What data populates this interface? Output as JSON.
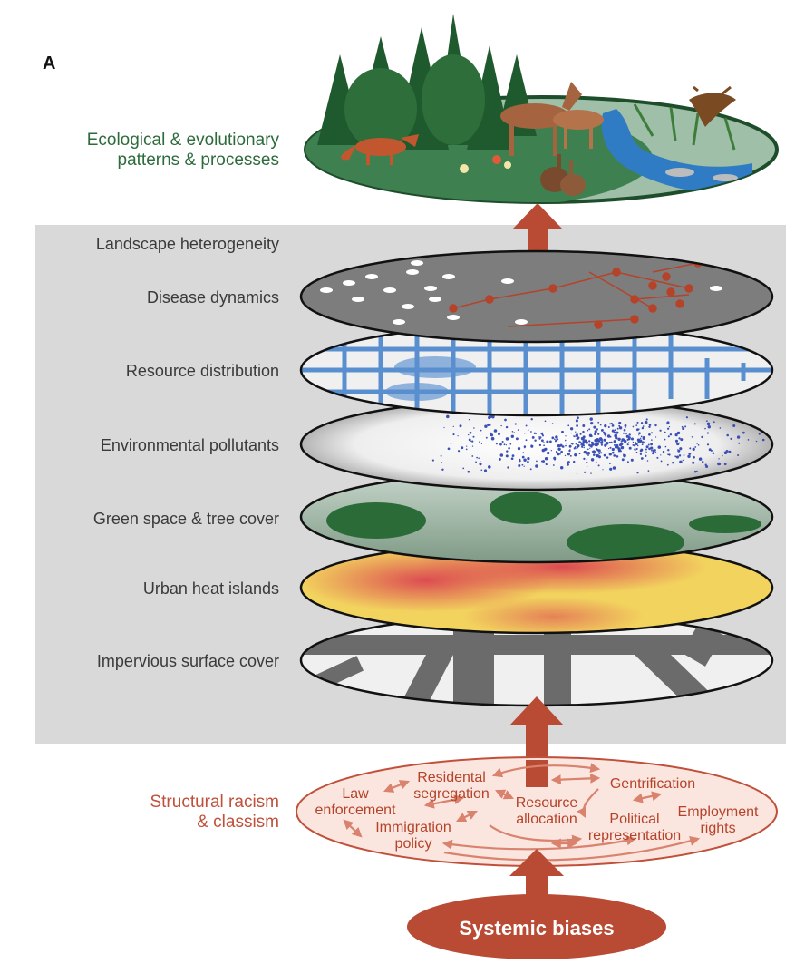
{
  "panel_letter": "A",
  "eco": {
    "line1": "Ecological & evolutionary",
    "line2": "patterns & processes"
  },
  "layers": [
    {
      "id": "landscape",
      "label": "Landscape heterogeneity"
    },
    {
      "id": "disease",
      "label": "Disease dynamics"
    },
    {
      "id": "resource",
      "label": "Resource distribution"
    },
    {
      "id": "pollutants",
      "label": "Environmental pollutants"
    },
    {
      "id": "green",
      "label": "Green space & tree cover"
    },
    {
      "id": "heat",
      "label": "Urban heat islands"
    },
    {
      "id": "impervious",
      "label": "Impervious surface cover"
    }
  ],
  "structural": {
    "line1": "Structural racism",
    "line2": "& classism",
    "terms": {
      "law1": "Law",
      "law2": "enforcement",
      "res1": "Residental",
      "res2": "segregation",
      "rsc1": "Resource",
      "rsc2": "allocation",
      "gent": "Gentrification",
      "imm1": "Immigration",
      "imm2": "policy",
      "pol1": "Political",
      "pol2": "representation",
      "emp1": "Employment",
      "emp2": "rights"
    }
  },
  "systemic": "Systemic biases",
  "colors": {
    "eco_green": "#2e6b3c",
    "structural_red": "#c0503a",
    "arrow_red": "#b94a34",
    "panel_gray": "#d9d9d9",
    "label_gray": "#3a3a3a"
  }
}
